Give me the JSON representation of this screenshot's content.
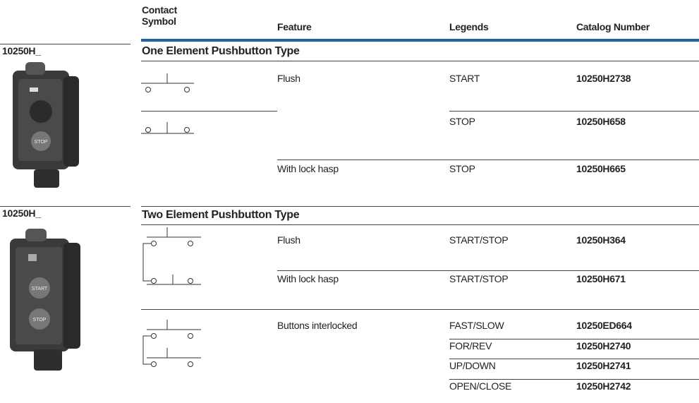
{
  "header": {
    "columns": [
      "Contact Symbol",
      "Feature",
      "Legends",
      "Catalog Number"
    ]
  },
  "sections": [
    {
      "label": "10250H_",
      "title": "One Element Pushbutton Type",
      "rows": [
        {
          "feature": "Flush",
          "legend": "START",
          "catalog": "10250H2738"
        },
        {
          "legend": "STOP",
          "catalog": "10250H658"
        },
        {
          "feature": "With lock hasp",
          "legend": "STOP",
          "catalog": "10250H665"
        }
      ]
    },
    {
      "label": "10250H_",
      "title": "Two Element Pushbutton Type",
      "rows": [
        {
          "feature": "Flush",
          "legend": "START/STOP",
          "catalog": "10250H364"
        },
        {
          "feature": "With lock hasp",
          "legend": "START/STOP",
          "catalog": "10250H671"
        },
        {
          "feature": "Buttons interlocked",
          "legend": "FAST/SLOW",
          "catalog": "10250ED664"
        },
        {
          "legend": "FOR/REV",
          "catalog": "10250H2740"
        },
        {
          "legend": "UP/DOWN",
          "catalog": "10250H2741"
        },
        {
          "legend": "OPEN/CLOSE",
          "catalog": "10250H2742"
        }
      ]
    }
  ]
}
